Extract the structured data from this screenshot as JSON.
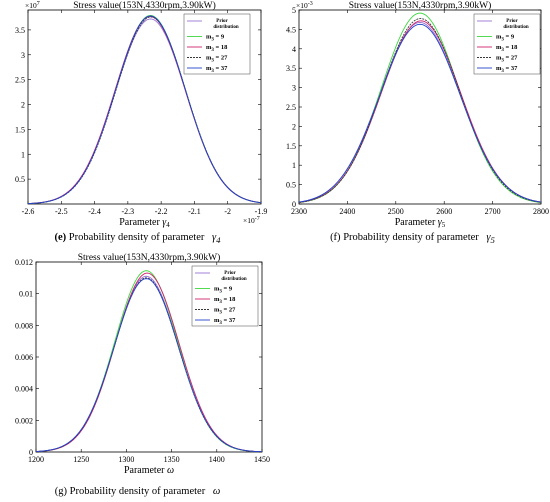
{
  "legend_labels": [
    {
      "head": "Prior",
      "tail": "distribution"
    },
    {
      "head": "m",
      "sub": "3",
      "tail": " = 9"
    },
    {
      "head": "m",
      "sub": "3",
      "tail": " = 18"
    },
    {
      "head": "m",
      "sub": "3",
      "tail": " = 27"
    },
    {
      "head": "m",
      "sub": "3",
      "tail": " = 37"
    }
  ],
  "series_colors": [
    "#9b74d6",
    "#3fd63f",
    "#d0246c",
    "#3a3a3a",
    "#2244cc"
  ],
  "chart_data": [
    {
      "id": "e",
      "type": "line",
      "title": "Stress value(153N,4330rpm,3.90kW)",
      "xlabel_text": "Parameter ",
      "xlabel_sym": "γ",
      "xlabel_sub": "4",
      "ylabel": "",
      "caption_label": "(e)",
      "caption_text": "Probability density of parameter",
      "caption_sym": "γ",
      "caption_sub": "4",
      "xlim": [
        -2.6e-07,
        -1.9e-07
      ],
      "ylim": [
        0,
        39000000.0
      ],
      "xticks": [
        -2.6e-07,
        -2.5e-07,
        -2.4e-07,
        -2.3e-07,
        -2.2e-07,
        -2.1e-07,
        -2e-07,
        -1.9e-07
      ],
      "xtick_labels": [
        "-2.6",
        "-2.5",
        "-2.4",
        "-2.3",
        "-2.2",
        "-2.1",
        "-2",
        "-1.9"
      ],
      "x_exponent": "-7",
      "yticks": [
        5000000.0,
        10000000.0,
        15000000.0,
        20000000.0,
        25000000.0,
        30000000.0,
        35000000.0
      ],
      "ytick_labels": [
        "0.5",
        "1",
        "1.5",
        "2",
        "2.5",
        "3",
        "3.5"
      ],
      "y_exponent": "7",
      "series": [
        {
          "mean": -2.232e-07,
          "sd": 1.06e-08,
          "peak": 37200000.0
        },
        {
          "mean": -2.232e-07,
          "sd": 1.05e-08,
          "peak": 37900000.0
        },
        {
          "mean": -2.233e-07,
          "sd": 1.055e-08,
          "peak": 37700000.0
        },
        {
          "mean": -2.231e-07,
          "sd": 1.05e-08,
          "peak": 37600000.0
        },
        {
          "mean": -2.232e-07,
          "sd": 1.05e-08,
          "peak": 37800000.0
        }
      ]
    },
    {
      "id": "f",
      "type": "line",
      "title": "Stress value(153N,4330rpm,3.90kW)",
      "xlabel_text": "Parameter ",
      "xlabel_sym": "γ",
      "xlabel_sub": "5",
      "ylabel": "",
      "caption_label": "(f)",
      "caption_text": "Probability density of parameter",
      "caption_sym": "γ",
      "caption_sub": "5",
      "xlim": [
        2300,
        2800
      ],
      "ylim": [
        0,
        0.005
      ],
      "xticks": [
        2300,
        2400,
        2500,
        2600,
        2700,
        2800
      ],
      "xtick_labels": [
        "2300",
        "2400",
        "2500",
        "2600",
        "2700",
        "2800"
      ],
      "x_exponent": "",
      "yticks": [
        0,
        0.0005,
        0.001,
        0.0015,
        0.002,
        0.0025,
        0.003,
        0.0035,
        0.004,
        0.0045,
        0.005
      ],
      "ytick_labels": [
        "0",
        "0.5",
        "1",
        "1.5",
        "2",
        "2.5",
        "3",
        "3.5",
        "4",
        "4.5",
        "5"
      ],
      "y_exponent": "-3",
      "series": [
        {
          "mean": 2550,
          "sd": 83,
          "peak": 0.00468
        },
        {
          "mean": 2550,
          "sd": 80,
          "peak": 0.00492
        },
        {
          "mean": 2552,
          "sd": 82,
          "peak": 0.00472
        },
        {
          "mean": 2551,
          "sd": 81,
          "peak": 0.00478
        },
        {
          "mean": 2550,
          "sd": 83,
          "peak": 0.00463
        }
      ]
    },
    {
      "id": "g",
      "type": "line",
      "title": "Stress value(153N,4330rpm,3.90kW)",
      "xlabel_text": "Parameter ",
      "xlabel_sym": "ω",
      "xlabel_sub": "",
      "ylabel": "",
      "caption_label": "(g)",
      "caption_text": "Probability density of parameter",
      "caption_sym": "ω",
      "caption_sub": "",
      "xlim": [
        1200,
        1450
      ],
      "ylim": [
        0,
        0.012
      ],
      "xticks": [
        1200,
        1250,
        1300,
        1350,
        1400,
        1450
      ],
      "xtick_labels": [
        "1200",
        "1250",
        "1300",
        "1350",
        "1400",
        "1450"
      ],
      "x_exponent": "",
      "yticks": [
        0,
        0.002,
        0.004,
        0.006,
        0.008,
        0.01,
        0.012
      ],
      "ytick_labels": [
        "0",
        "0.002",
        "0.004",
        "0.006",
        "0.008",
        "0.01",
        "0.012"
      ],
      "y_exponent": "",
      "series": [
        {
          "mean": 1322,
          "sd": 35.5,
          "peak": 0.0111
        },
        {
          "mean": 1322,
          "sd": 35,
          "peak": 0.01145
        },
        {
          "mean": 1323,
          "sd": 35.3,
          "peak": 0.0113
        },
        {
          "mean": 1322,
          "sd": 35.4,
          "peak": 0.011
        },
        {
          "mean": 1322,
          "sd": 35.6,
          "peak": 0.01095
        }
      ]
    }
  ]
}
